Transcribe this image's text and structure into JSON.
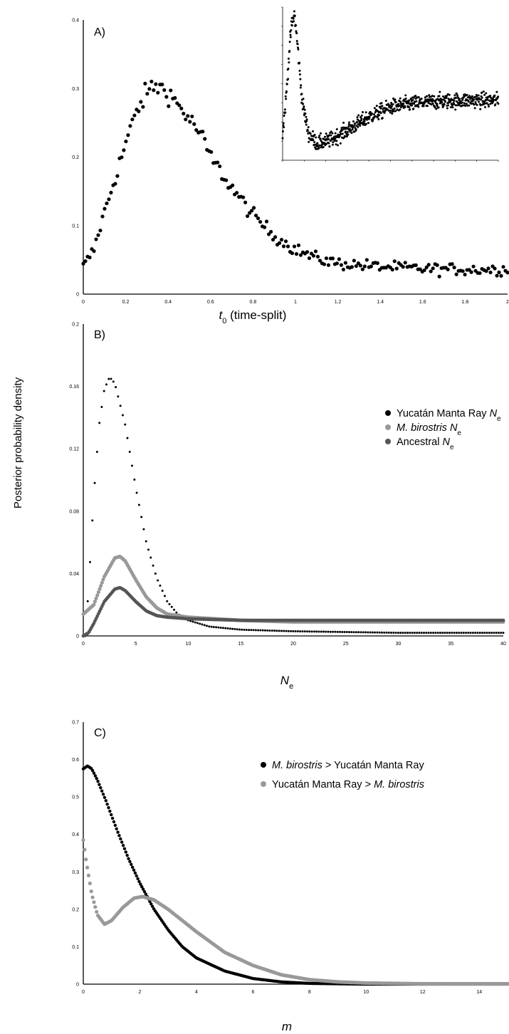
{
  "ylabel_shared": "Posterior probability density",
  "chart_data": [
    {
      "id": "A",
      "type": "scatter",
      "panel_label": "A)",
      "xlabel": {
        "main": "t",
        "sub": "0",
        "rest": " (time-split)"
      },
      "xlim": [
        0,
        2
      ],
      "ylim": [
        0,
        0.4
      ],
      "xticks": [
        0,
        0.2,
        0.4,
        0.6,
        0.8,
        1,
        1.2,
        1.4,
        1.6,
        1.8,
        2
      ],
      "xtick_labels": [
        "0",
        "0.2",
        "0.4",
        "0.6",
        "0.8",
        "1",
        "1.2",
        "1.4",
        "1.6",
        "1.8",
        "2"
      ],
      "yticks": [
        0,
        0.1,
        0.2,
        0.3,
        0.4
      ],
      "ytick_labels": [
        "0",
        "0.1",
        "0.2",
        "0.3",
        "0.4"
      ],
      "curve_anchors": [
        [
          0,
          0.04
        ],
        [
          0.05,
          0.065
        ],
        [
          0.1,
          0.12
        ],
        [
          0.15,
          0.17
        ],
        [
          0.2,
          0.22
        ],
        [
          0.25,
          0.265
        ],
        [
          0.3,
          0.295
        ],
        [
          0.34,
          0.305
        ],
        [
          0.4,
          0.295
        ],
        [
          0.45,
          0.275
        ],
        [
          0.5,
          0.255
        ],
        [
          0.55,
          0.235
        ],
        [
          0.6,
          0.2
        ],
        [
          0.7,
          0.155
        ],
        [
          0.8,
          0.115
        ],
        [
          0.9,
          0.085
        ],
        [
          1.0,
          0.065
        ],
        [
          1.1,
          0.052
        ],
        [
          1.2,
          0.045
        ],
        [
          1.4,
          0.04
        ],
        [
          1.6,
          0.037
        ],
        [
          1.8,
          0.036
        ],
        [
          2.0,
          0.036
        ]
      ],
      "n_points": 200,
      "noise": 0.009,
      "series": [
        {
          "values_note": "",
          "color": "#000000"
        }
      ],
      "inset": {
        "curve_anchors": [
          [
            0,
            0.04
          ],
          [
            0.015,
            0.09
          ],
          [
            0.03,
            0.16
          ],
          [
            0.04,
            0.2
          ],
          [
            0.055,
            0.22
          ],
          [
            0.07,
            0.17
          ],
          [
            0.09,
            0.09
          ],
          [
            0.12,
            0.04
          ],
          [
            0.16,
            0.025
          ],
          [
            0.22,
            0.03
          ],
          [
            0.3,
            0.045
          ],
          [
            0.4,
            0.065
          ],
          [
            0.5,
            0.08
          ],
          [
            0.6,
            0.085
          ],
          [
            0.7,
            0.088
          ],
          [
            0.85,
            0.09
          ],
          [
            1.0,
            0.09
          ]
        ],
        "n_points": 720,
        "noise": 0.008,
        "ylim": [
          0,
          0.23
        ],
        "color": "#000000"
      }
    },
    {
      "id": "B",
      "type": "scatter",
      "panel_label": "B)",
      "xlabel": {
        "main": "N",
        "sub": "e",
        "rest": ""
      },
      "xlim": [
        0,
        40
      ],
      "ylim": [
        0,
        0.2
      ],
      "xticks": [
        0,
        5,
        10,
        15,
        20,
        25,
        30,
        35,
        40
      ],
      "xtick_labels": [
        "0",
        "5",
        "10",
        "15",
        "20",
        "25",
        "30",
        "35",
        "40"
      ],
      "yticks": [
        0,
        0.04,
        0.08,
        0.12,
        0.16,
        0.2
      ],
      "ytick_labels": [
        "0",
        "0.04",
        "0.08",
        "0.12",
        "0.16",
        "0.2"
      ],
      "series": [
        {
          "name_parts": [
            {
              "t": "Yucatán Manta Ray "
            },
            {
              "t": "N",
              "i": true
            },
            {
              "t": "e",
              "sub": true
            }
          ],
          "color": "#000000",
          "radius": 1.5,
          "n_points": 180,
          "x_start": 0.2,
          "curve_anchors": [
            [
              0.2,
              0.0
            ],
            [
              0.5,
              0.03
            ],
            [
              1,
              0.09
            ],
            [
              1.5,
              0.135
            ],
            [
              2,
              0.158
            ],
            [
              2.5,
              0.166
            ],
            [
              3,
              0.162
            ],
            [
              4,
              0.135
            ],
            [
              5,
              0.095
            ],
            [
              6,
              0.06
            ],
            [
              7,
              0.037
            ],
            [
              8,
              0.022
            ],
            [
              9,
              0.014
            ],
            [
              10,
              0.01
            ],
            [
              12,
              0.006
            ],
            [
              15,
              0.004
            ],
            [
              20,
              0.003
            ],
            [
              30,
              0.002
            ],
            [
              40,
              0.002
            ]
          ]
        },
        {
          "name_parts": [
            {
              "t": "M. birostris",
              "i": true
            },
            {
              "t": " "
            },
            {
              "t": "N",
              "i": true
            },
            {
              "t": "e",
              "sub": true
            }
          ],
          "color": "#999999",
          "radius": 2.6,
          "n_points": 360,
          "x_start": 0,
          "curve_anchors": [
            [
              0,
              0.014
            ],
            [
              1,
              0.02
            ],
            [
              2,
              0.038
            ],
            [
              3,
              0.05
            ],
            [
              3.5,
              0.051
            ],
            [
              4,
              0.048
            ],
            [
              5,
              0.036
            ],
            [
              6,
              0.025
            ],
            [
              7,
              0.018
            ],
            [
              8,
              0.014
            ],
            [
              10,
              0.012
            ],
            [
              15,
              0.01
            ],
            [
              20,
              0.009
            ],
            [
              30,
              0.009
            ],
            [
              40,
              0.009
            ]
          ]
        },
        {
          "name_parts": [
            {
              "t": "Ancestral "
            },
            {
              "t": "N",
              "i": true
            },
            {
              "t": "e",
              "sub": true
            }
          ],
          "color": "#555555",
          "radius": 2.4,
          "n_points": 360,
          "x_start": 0,
          "curve_anchors": [
            [
              0,
              0.0
            ],
            [
              0.5,
              0.002
            ],
            [
              1,
              0.008
            ],
            [
              2,
              0.022
            ],
            [
              3,
              0.03
            ],
            [
              3.5,
              0.031
            ],
            [
              4,
              0.029
            ],
            [
              5,
              0.022
            ],
            [
              6,
              0.016
            ],
            [
              7,
              0.013
            ],
            [
              8,
              0.012
            ],
            [
              10,
              0.011
            ],
            [
              15,
              0.01
            ],
            [
              20,
              0.01
            ],
            [
              30,
              0.01
            ],
            [
              40,
              0.01
            ]
          ]
        }
      ]
    },
    {
      "id": "C",
      "type": "scatter",
      "panel_label": "C)",
      "xlabel": {
        "main": "m",
        "sub": "",
        "rest": ""
      },
      "xlim": [
        0,
        15
      ],
      "ylim": [
        0,
        0.7
      ],
      "xticks": [
        0,
        2,
        4,
        6,
        8,
        10,
        12,
        14
      ],
      "xtick_labels": [
        "0",
        "2",
        "4",
        "6",
        "8",
        "10",
        "12",
        "14"
      ],
      "yticks": [
        0,
        0.1,
        0.2,
        0.3,
        0.4,
        0.5,
        0.6,
        0.7
      ],
      "ytick_labels": [
        "0",
        "0.1",
        "0.2",
        "0.3",
        "0.4",
        "0.5",
        "0.6",
        "0.7"
      ],
      "series": [
        {
          "name_parts": [
            {
              "t": "M. birostris",
              "i": true
            },
            {
              "t": " > Yucatán Manta Ray"
            }
          ],
          "color": "#000000",
          "radius": 2.2,
          "n_points": 320,
          "x_start": 0,
          "curve_anchors": [
            [
              0,
              0.575
            ],
            [
              0.15,
              0.583
            ],
            [
              0.3,
              0.575
            ],
            [
              0.5,
              0.545
            ],
            [
              0.8,
              0.49
            ],
            [
              1.2,
              0.41
            ],
            [
              1.6,
              0.335
            ],
            [
              2,
              0.27
            ],
            [
              2.5,
              0.2
            ],
            [
              3,
              0.145
            ],
            [
              3.5,
              0.1
            ],
            [
              4,
              0.07
            ],
            [
              5,
              0.035
            ],
            [
              6,
              0.015
            ],
            [
              7,
              0.006
            ],
            [
              8,
              0.002
            ],
            [
              10,
              0.0
            ],
            [
              15,
              0.0
            ]
          ]
        },
        {
          "name_parts": [
            {
              "t": "Yucatán Manta Ray > "
            },
            {
              "t": "M. birostris",
              "i": true
            }
          ],
          "color": "#999999",
          "radius": 2.6,
          "n_points": 320,
          "x_start": 0,
          "curve_anchors": [
            [
              0,
              0.385
            ],
            [
              0.1,
              0.33
            ],
            [
              0.3,
              0.24
            ],
            [
              0.5,
              0.185
            ],
            [
              0.75,
              0.16
            ],
            [
              1,
              0.17
            ],
            [
              1.4,
              0.205
            ],
            [
              1.8,
              0.23
            ],
            [
              2.1,
              0.234
            ],
            [
              2.5,
              0.225
            ],
            [
              3,
              0.2
            ],
            [
              4,
              0.14
            ],
            [
              5,
              0.085
            ],
            [
              6,
              0.05
            ],
            [
              7,
              0.025
            ],
            [
              8,
              0.012
            ],
            [
              9,
              0.006
            ],
            [
              10,
              0.003
            ],
            [
              12,
              0.001
            ],
            [
              15,
              0.001
            ]
          ]
        }
      ]
    }
  ]
}
